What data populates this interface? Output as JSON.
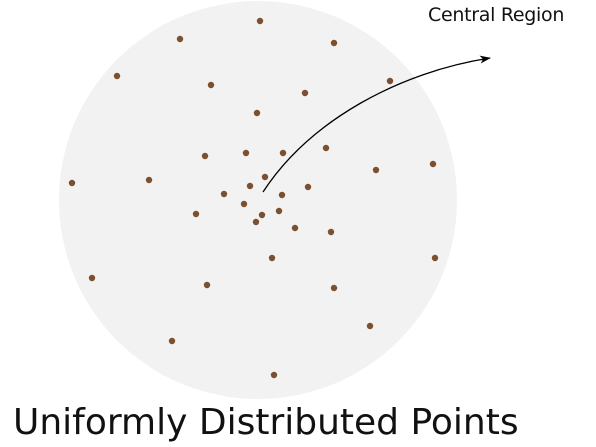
{
  "diagram": {
    "annotation_label": "Central Region",
    "caption": "Uniformly Distributed Points",
    "colors": {
      "disc_fill": "#f2f2f2",
      "point_fill": "#7a5030",
      "arrow_stroke": "#000000"
    }
  }
}
